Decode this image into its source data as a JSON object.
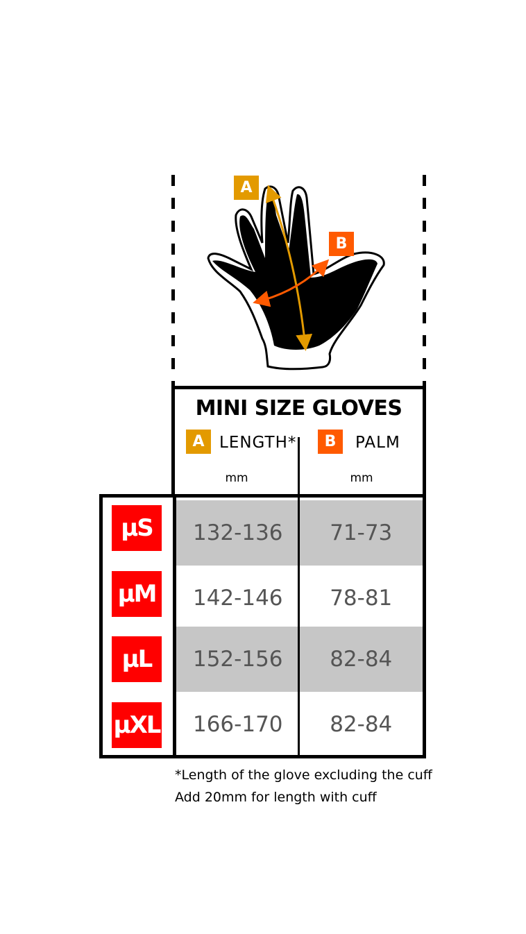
{
  "colors": {
    "length_accent": "#E39A00",
    "palm_accent": "#FF5A00",
    "size_badge": "#FF0000",
    "shaded_row": "#C6C6C6"
  },
  "diagram": {
    "badge_a": "A",
    "badge_b": "B"
  },
  "header": {
    "title": "MINI SIZE GLOVES",
    "length": {
      "badge": "A",
      "label": "LENGTH*",
      "unit": "mm"
    },
    "palm": {
      "badge": "B",
      "label": "PALM",
      "unit": "mm"
    }
  },
  "rows": [
    {
      "size": "μS",
      "length": "132-136",
      "palm": "71-73"
    },
    {
      "size": "μM",
      "length": "142-146",
      "palm": "78-81"
    },
    {
      "size": "μL",
      "length": "152-156",
      "palm": "82-84"
    },
    {
      "size": "μXL",
      "length": "166-170",
      "palm": "82-84"
    }
  ],
  "footnote": {
    "line1": "*Length of the glove excluding the cuff",
    "line2": "Add 20mm for length with cuff"
  }
}
